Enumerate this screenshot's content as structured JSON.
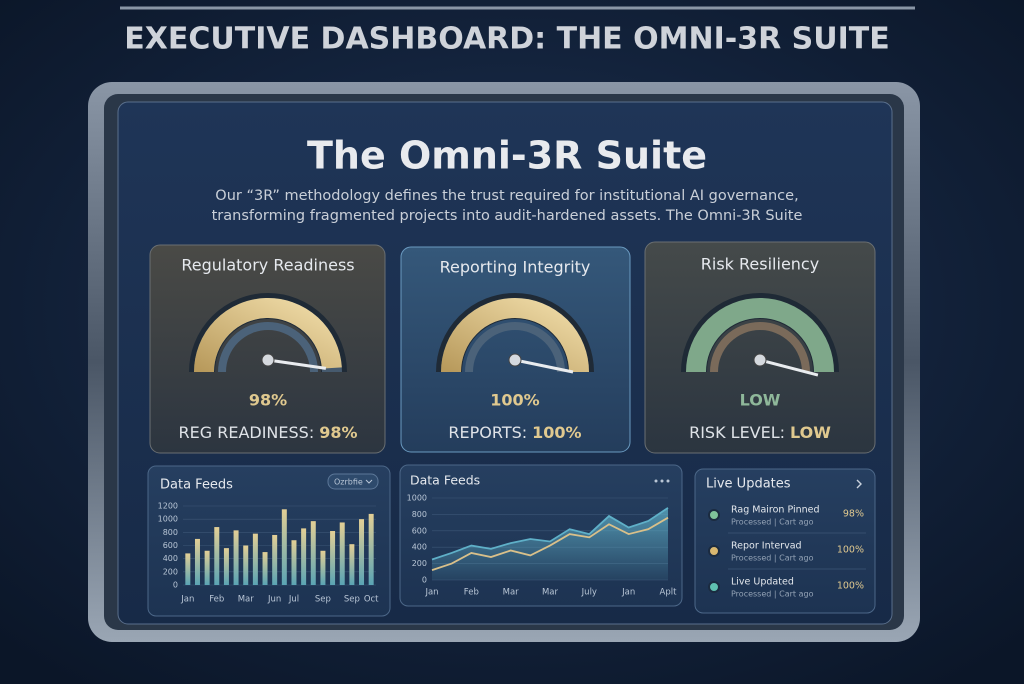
{
  "header": {
    "title": "EXECUTIVE DASHBOARD: THE OMNI-3R SUITE"
  },
  "panel": {
    "title": "The Omni-3R Suite",
    "description": [
      "Our “3R” methodology defines the trust required for institutional AI governance,",
      "transforming fragmented projects into audit-hardened assets. The Omni-3R Suite"
    ]
  },
  "gauges": [
    {
      "title": "Regulatory Readiness",
      "value": 98,
      "value_label": "98%",
      "status": "REG READINESS:",
      "status_value": "98%"
    },
    {
      "title": "Reporting Integrity",
      "value": 100,
      "value_label": "100%",
      "status": "REPORTS:",
      "status_value": "100%"
    },
    {
      "title": "Risk Resiliency",
      "value_label": "LOW",
      "status": "RISK LEVEL:",
      "status_value": "LOW"
    }
  ],
  "bar_chart": {
    "type": "bar",
    "title": "Data Feeds",
    "filter": "Ozrbfie",
    "categories": [
      "Jan",
      null,
      null,
      "Feb",
      null,
      null,
      "Mar",
      null,
      null,
      "Jun",
      null,
      "Jul",
      null,
      null,
      "Sep",
      null,
      null,
      "Sep",
      null,
      "Oct"
    ],
    "values": [
      480,
      700,
      520,
      880,
      560,
      830,
      600,
      780,
      500,
      760,
      1150,
      680,
      860,
      970,
      520,
      820,
      950,
      620,
      1000,
      1080
    ],
    "ylim": [
      0,
      1200
    ],
    "yticks": [
      0,
      200,
      400,
      600,
      800,
      1000,
      1200
    ]
  },
  "line_chart": {
    "type": "area",
    "title": "Data Feeds",
    "categories": [
      "Jan",
      null,
      "Feb",
      null,
      "Mar",
      null,
      "Mar",
      null,
      "July",
      null,
      "Jan",
      null,
      "Aplt"
    ],
    "series": [
      {
        "color": "#5fb0c8",
        "values": [
          250,
          330,
          420,
          380,
          450,
          500,
          470,
          620,
          560,
          780,
          640,
          720,
          880
        ]
      },
      {
        "color": "#d9c08a",
        "values": [
          120,
          200,
          330,
          280,
          360,
          300,
          420,
          560,
          520,
          680,
          560,
          620,
          760
        ]
      }
    ],
    "ylim": [
      0,
      1000
    ],
    "yticks": [
      0,
      200,
      400,
      600,
      800,
      1000
    ]
  },
  "live_updates": {
    "title": "Live Updates",
    "items": [
      {
        "title": "Rag Mairon Pinned",
        "subtitle": "Processed | Cart ago",
        "value": "98%",
        "color": "#7fc29a"
      },
      {
        "title": "Repor Intervad",
        "subtitle": "Processed | Cart ago",
        "value": "100%",
        "color": "#d9b870"
      },
      {
        "title": "Live Updated",
        "subtitle": "Processed | Cart ago",
        "value": "100%",
        "color": "#5fc0b0"
      }
    ]
  }
}
